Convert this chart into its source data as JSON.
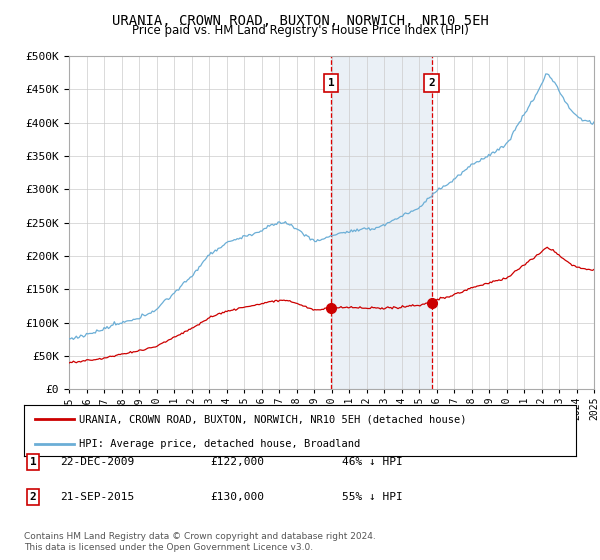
{
  "title": "URANIA, CROWN ROAD, BUXTON, NORWICH, NR10 5EH",
  "subtitle": "Price paid vs. HM Land Registry's House Price Index (HPI)",
  "legend_line1": "URANIA, CROWN ROAD, BUXTON, NORWICH, NR10 5EH (detached house)",
  "legend_line2": "HPI: Average price, detached house, Broadland",
  "transaction1_date": "22-DEC-2009",
  "transaction1_price": "£122,000",
  "transaction1_hpi": "46% ↓ HPI",
  "transaction1_year": 2009.97,
  "transaction2_date": "21-SEP-2015",
  "transaction2_price": "£130,000",
  "transaction2_hpi": "55% ↓ HPI",
  "transaction2_year": 2015.72,
  "footer": "Contains HM Land Registry data © Crown copyright and database right 2024.\nThis data is licensed under the Open Government Licence v3.0.",
  "hpi_color": "#6baed6",
  "price_color": "#cc0000",
  "background_color": "#ffffff",
  "grid_color": "#cccccc",
  "annotation_bg": "#dce6f1",
  "ylim": [
    0,
    500000
  ],
  "xlim_start": 1995,
  "xlim_end": 2025
}
